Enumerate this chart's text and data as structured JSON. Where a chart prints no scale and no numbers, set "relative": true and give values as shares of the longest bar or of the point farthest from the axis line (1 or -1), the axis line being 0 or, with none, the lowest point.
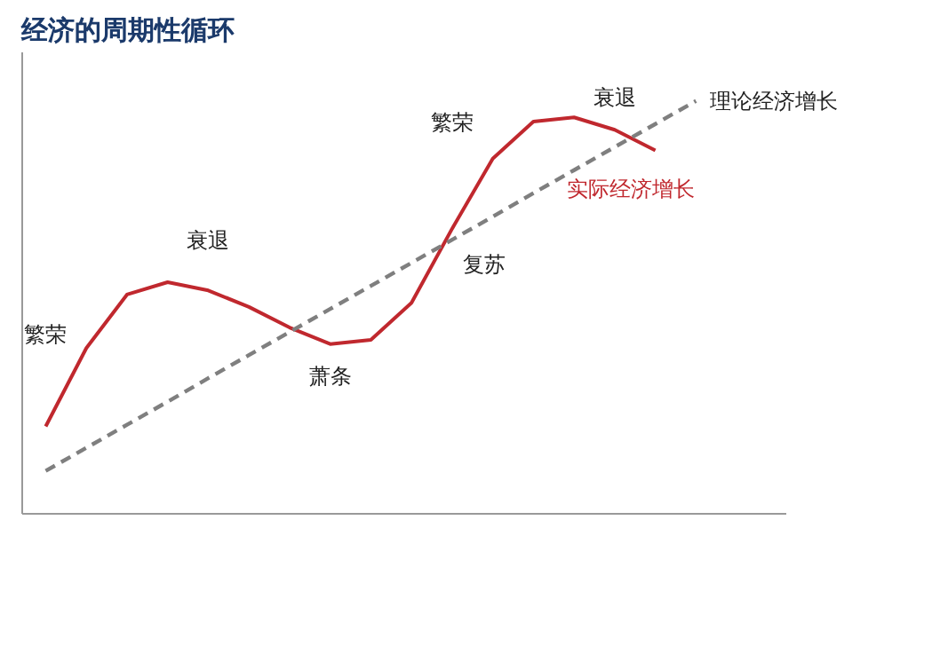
{
  "chart_data": {
    "type": "line",
    "title": "经济的周期性循环",
    "relative": true,
    "legend": false,
    "grid": false,
    "marker": "none",
    "tick_labels": false,
    "categories": [
      null,
      null,
      null,
      null,
      null,
      null,
      null,
      null,
      null,
      null,
      null,
      null,
      null,
      null,
      null,
      null,
      null
    ],
    "series": [
      {
        "name": "实际经济增长",
        "color": "#c0282e",
        "line_style": "solid",
        "values": [
          0.21,
          0.4,
          0.53,
          0.56,
          0.54,
          0.5,
          0.45,
          0.41,
          0.42,
          0.51,
          0.69,
          0.86,
          0.95,
          0.96,
          0.93,
          0.88,
          null
        ]
      },
      {
        "name": "理论经济增长",
        "color": "#7f7f7f",
        "line_style": "dashed",
        "values": [
          0.102,
          0.158,
          0.214,
          0.27,
          0.327,
          0.383,
          0.439,
          0.495,
          0.551,
          0.607,
          0.663,
          0.719,
          0.776,
          0.832,
          0.888,
          0.944,
          1
        ]
      }
    ],
    "annotations": [
      "繁荣",
      "衰退",
      "萧条",
      "复苏",
      "繁荣",
      "衰退"
    ]
  }
}
